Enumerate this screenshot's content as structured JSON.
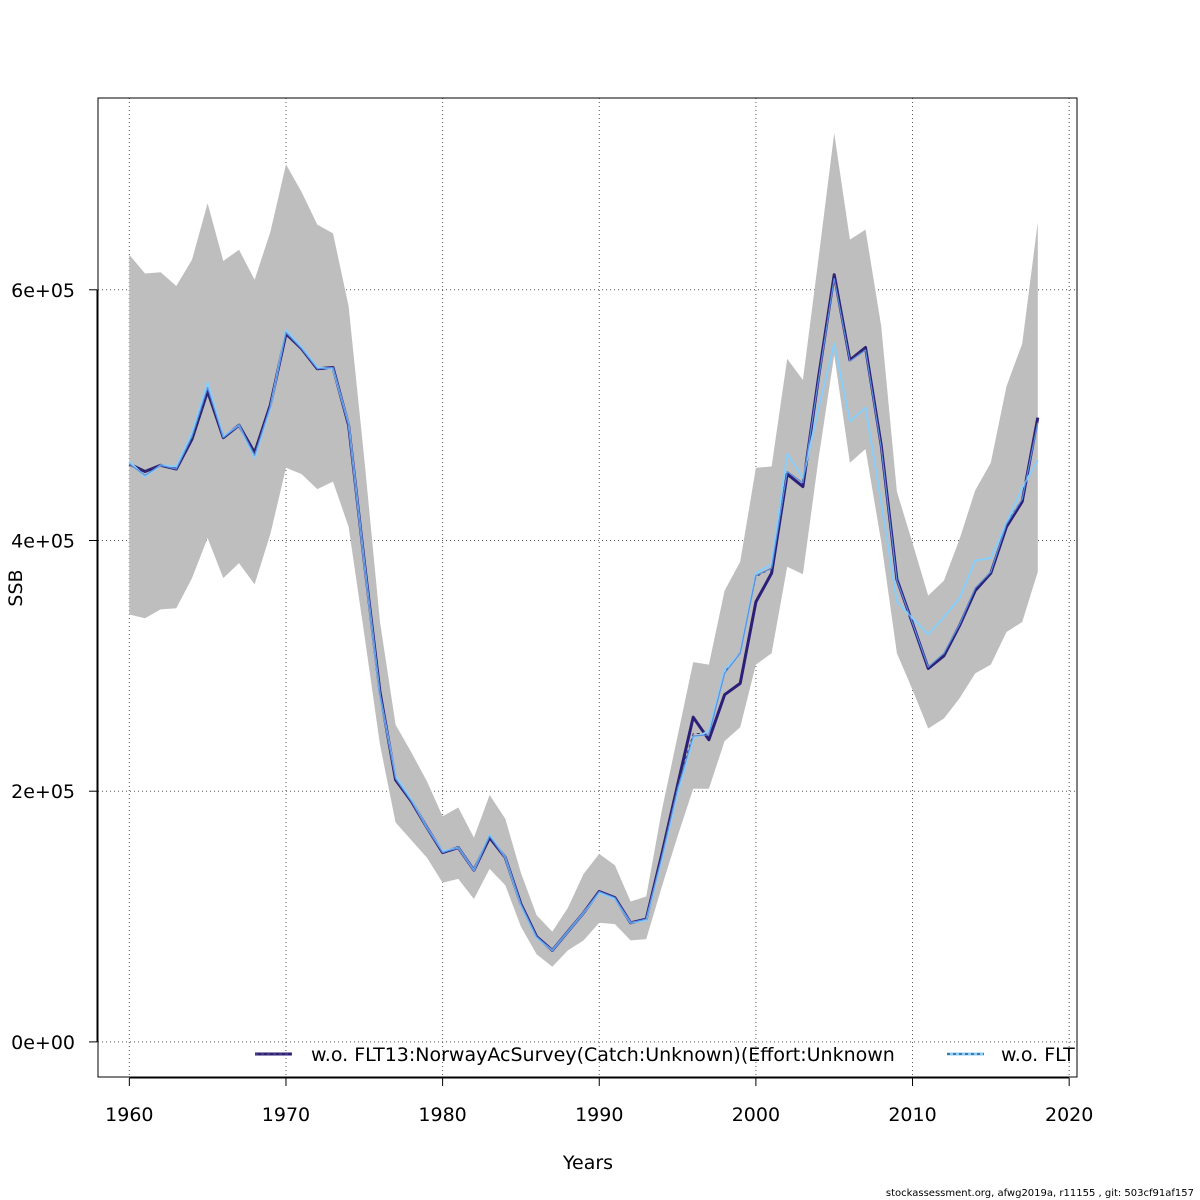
{
  "chart_data": {
    "type": "line",
    "xlabel": "Years",
    "ylabel": "SSB",
    "xlim": [
      1958,
      2020.5
    ],
    "ylim": [
      -28000,
      753000
    ],
    "x_ticks": [
      1960,
      1970,
      1980,
      1990,
      2000,
      2010,
      2020
    ],
    "y_ticks": [
      0,
      200000,
      400000,
      600000
    ],
    "y_tick_labels": [
      "0e+00",
      "2e+05",
      "4e+05",
      "6e+05"
    ],
    "grid": true,
    "legend_position": "bottom",
    "x": [
      1960,
      1961,
      1962,
      1963,
      1964,
      1965,
      1966,
      1967,
      1968,
      1969,
      1970,
      1971,
      1972,
      1973,
      1974,
      1975,
      1976,
      1977,
      1978,
      1979,
      1980,
      1981,
      1982,
      1983,
      1984,
      1985,
      1986,
      1987,
      1988,
      1989,
      1990,
      1991,
      1992,
      1993,
      1994,
      1995,
      1996,
      1997,
      1998,
      1999,
      2000,
      2001,
      2002,
      2003,
      2004,
      2005,
      2006,
      2007,
      2008,
      2009,
      2010,
      2011,
      2012,
      2013,
      2014,
      2015,
      2016,
      2017,
      2018
    ],
    "band": {
      "upper": [
        628000,
        613000,
        614000,
        603000,
        624000,
        669000,
        623000,
        632000,
        608000,
        646000,
        700000,
        678000,
        652000,
        645000,
        587000,
        465000,
        335000,
        253000,
        231000,
        208000,
        180000,
        187000,
        163000,
        197000,
        178000,
        135000,
        101000,
        88000,
        107000,
        134000,
        150000,
        141000,
        112000,
        116000,
        185000,
        244000,
        303000,
        301000,
        360000,
        383000,
        458000,
        459000,
        545000,
        528000,
        625000,
        725000,
        640000,
        648000,
        571000,
        439000,
        398000,
        356000,
        368000,
        401000,
        440000,
        462000,
        523000,
        557000,
        654000
      ],
      "lower": [
        341000,
        338000,
        345000,
        346000,
        370000,
        402000,
        370000,
        382000,
        365000,
        405000,
        458000,
        453000,
        441000,
        447000,
        411000,
        325000,
        237000,
        175000,
        161000,
        147000,
        127000,
        130000,
        114000,
        138000,
        125000,
        92000,
        70000,
        60000,
        73000,
        81000,
        95000,
        94000,
        81000,
        82000,
        124000,
        164000,
        202000,
        202000,
        240000,
        251000,
        301000,
        310000,
        379000,
        373000,
        465000,
        548000,
        462000,
        473000,
        399000,
        310000,
        281000,
        250000,
        258000,
        274000,
        294000,
        301000,
        327000,
        335000,
        375000
      ]
    },
    "series": [
      {
        "name": "w.o. FLT13:NorwayAcSurvey(Catch:Unknown)(Effort:Unknown",
        "color": "#2c1f78",
        "style": "solid",
        "values": [
          461000,
          455000,
          460000,
          457000,
          481000,
          519000,
          482000,
          492000,
          470000,
          508000,
          565000,
          553000,
          537000,
          538000,
          492000,
          383000,
          279000,
          209000,
          192000,
          171000,
          151000,
          155000,
          137000,
          163000,
          147000,
          110000,
          84000,
          73000,
          88000,
          103000,
          120000,
          115000,
          95000,
          98000,
          150000,
          205000,
          259000,
          241000,
          277000,
          286000,
          351000,
          374000,
          453000,
          443000,
          530000,
          612000,
          544000,
          554000,
          476000,
          369000,
          334000,
          298000,
          308000,
          332000,
          360000,
          374000,
          411000,
          431000,
          498000
        ]
      },
      {
        "name": "",
        "color": "#3a3a52",
        "style": "dashed",
        "values": [
          461000,
          455000,
          460000,
          457000,
          481000,
          519000,
          482000,
          492000,
          470000,
          508000,
          565000,
          553000,
          537000,
          538000,
          492000,
          383000,
          279000,
          209000,
          192000,
          171000,
          151000,
          155000,
          137000,
          163000,
          147000,
          110000,
          84000,
          73000,
          88000,
          103000,
          120000,
          115000,
          95000,
          98000,
          150000,
          205000,
          246000,
          246000,
          295000,
          311000,
          371000,
          378000,
          455000,
          446000,
          530000,
          612000,
          545000,
          553000,
          477000,
          369000,
          335000,
          299000,
          309000,
          333000,
          361000,
          374000,
          414000,
          433000,
          497000
        ]
      },
      {
        "name": "w.o. FLT",
        "color": "#87cefa",
        "style": "solid",
        "values": [
          463000,
          451000,
          460000,
          459000,
          486000,
          526000,
          483000,
          492000,
          466000,
          506000,
          568000,
          554000,
          538000,
          537000,
          493000,
          382000,
          276000,
          212000,
          193000,
          171000,
          152000,
          155000,
          137000,
          165000,
          147000,
          109000,
          83000,
          73000,
          88000,
          103000,
          119000,
          114000,
          95000,
          97000,
          146000,
          199000,
          242000,
          248000,
          297000,
          310000,
          374000,
          381000,
          469000,
          450000,
          505000,
          557000,
          495000,
          506000,
          430000,
          351000,
          338000,
          325000,
          339000,
          354000,
          384000,
          386000,
          414000,
          442000,
          464000
        ]
      },
      {
        "name": "",
        "color": "#5b8fe0",
        "style": "solid",
        "values": [
          461000,
          452000,
          460000,
          457000,
          483000,
          522000,
          482000,
          492000,
          468000,
          507000,
          566000,
          553000,
          537000,
          538000,
          492000,
          382000,
          277000,
          210000,
          192000,
          171000,
          151000,
          155000,
          137000,
          164000,
          147000,
          110000,
          84000,
          73000,
          88000,
          103000,
          120000,
          115000,
          95000,
          98000,
          148000,
          202000,
          244000,
          245000,
          294000,
          310000,
          372000,
          378000,
          455000,
          446000,
          528000,
          609000,
          543000,
          552000,
          474000,
          368000,
          334000,
          299000,
          310000,
          333000,
          362000,
          375000,
          413000,
          433000,
          494000
        ]
      }
    ],
    "legend": [
      {
        "label": "w.o. FLT13:NorwayAcSurvey(Catch:Unknown)(Effort:Unknown",
        "color": "#2c1f78",
        "dashed_overlay": "#5a5a70"
      },
      {
        "label": "w.o. FLT",
        "color": "#87cefa",
        "dashed_overlay": "#1a1a3a"
      }
    ],
    "footer": "stockassessment.org, afwg2019a, r11155 , git: 503cf91af157"
  }
}
